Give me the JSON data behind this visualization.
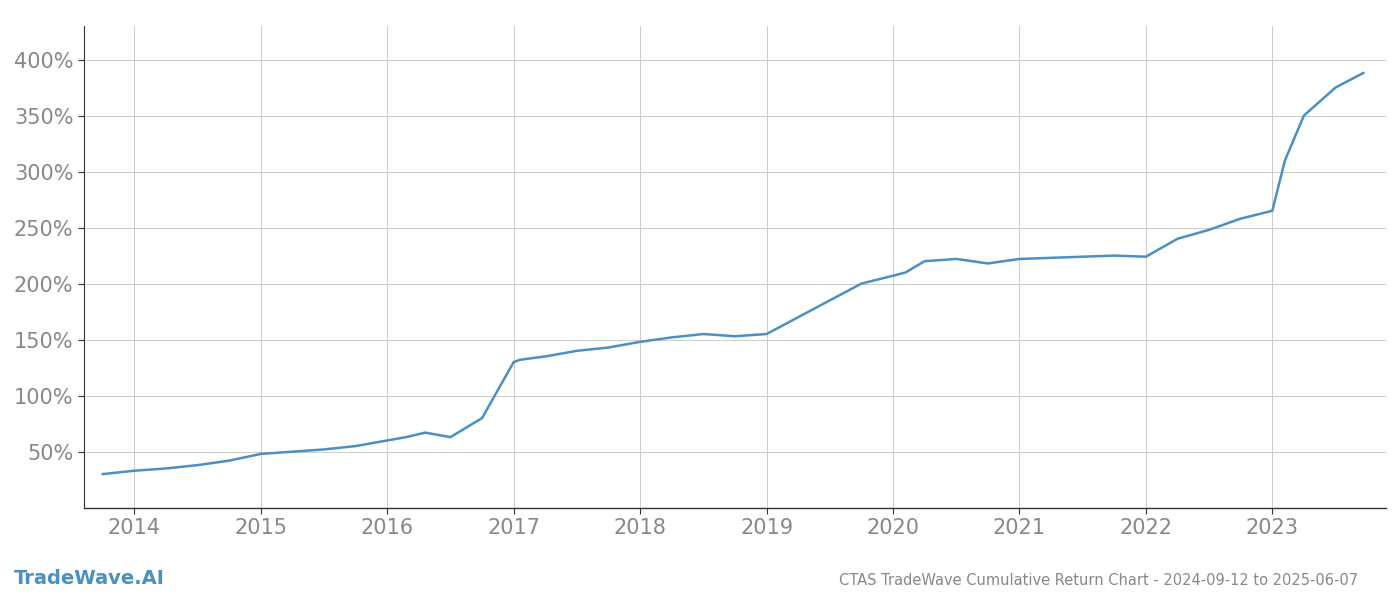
{
  "title": "CTAS TradeWave Cumulative Return Chart - 2024-09-12 to 2025-06-07",
  "watermark": "TradeWave.AI",
  "line_color": "#4a90c4",
  "background_color": "#ffffff",
  "grid_color": "#cccccc",
  "text_color": "#888888",
  "x_years": [
    2014,
    2015,
    2016,
    2017,
    2018,
    2019,
    2020,
    2021,
    2022,
    2023
  ],
  "x_values": [
    2013.75,
    2014.0,
    2014.25,
    2014.5,
    2014.75,
    2015.0,
    2015.25,
    2015.5,
    2015.75,
    2016.0,
    2016.15,
    2016.3,
    2016.5,
    2016.75,
    2017.0,
    2017.05,
    2017.25,
    2017.5,
    2017.75,
    2018.0,
    2018.25,
    2018.5,
    2018.75,
    2019.0,
    2019.25,
    2019.5,
    2019.75,
    2020.0,
    2020.1,
    2020.25,
    2020.5,
    2020.75,
    2021.0,
    2021.25,
    2021.5,
    2021.75,
    2022.0,
    2022.25,
    2022.5,
    2022.75,
    2023.0,
    2023.1,
    2023.25,
    2023.5,
    2023.72
  ],
  "y_values": [
    30,
    33,
    35,
    38,
    42,
    48,
    50,
    52,
    55,
    60,
    63,
    67,
    63,
    80,
    130,
    132,
    135,
    140,
    143,
    148,
    152,
    155,
    153,
    155,
    170,
    185,
    200,
    207,
    210,
    220,
    222,
    218,
    222,
    223,
    224,
    225,
    224,
    240,
    248,
    258,
    265,
    310,
    350,
    375,
    388
  ],
  "ylim": [
    0,
    430
  ],
  "yticks": [
    50,
    100,
    150,
    200,
    250,
    300,
    350,
    400
  ],
  "ytick_labels": [
    "50%",
    "100%",
    "150%",
    "200%",
    "250%",
    "300%",
    "350%",
    "400%"
  ],
  "xlim": [
    2013.6,
    2023.9
  ],
  "line_width": 1.8,
  "title_fontsize": 10.5,
  "watermark_fontsize": 14,
  "tick_fontsize": 15,
  "spine_color": "#333333"
}
